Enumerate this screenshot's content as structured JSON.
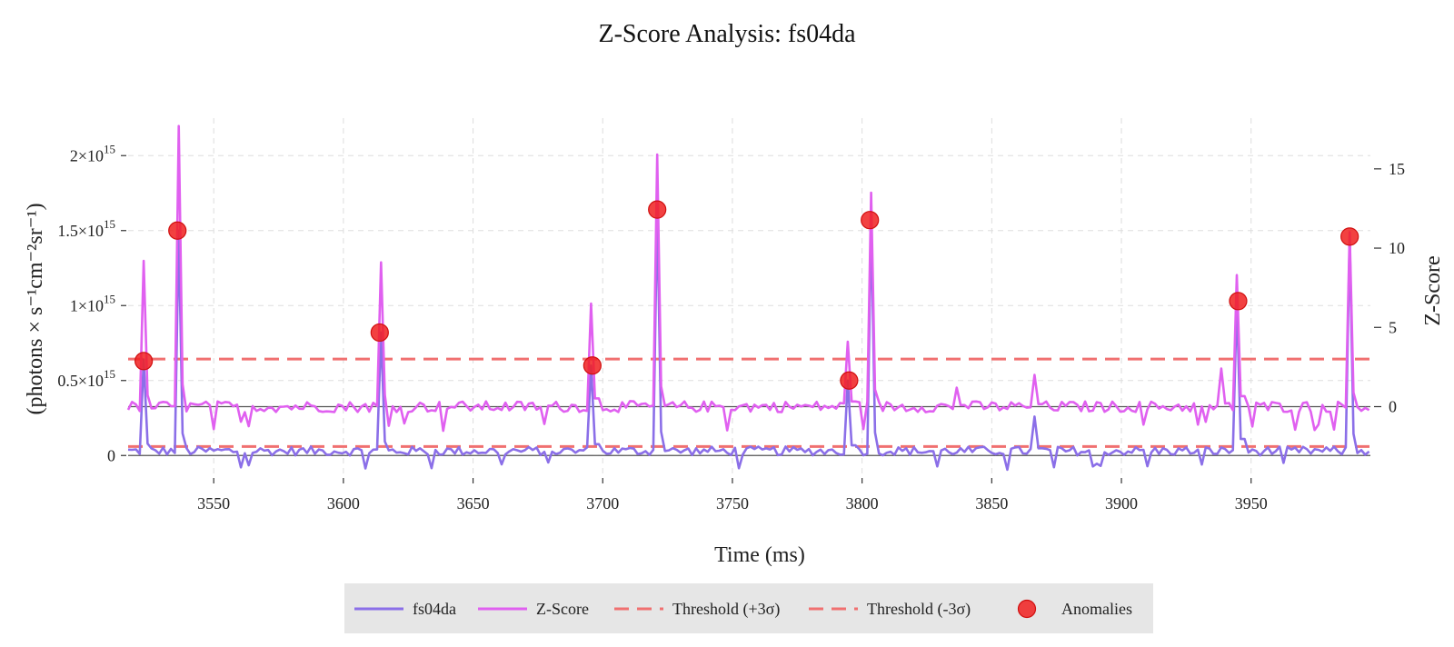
{
  "chart_data": {
    "type": "line",
    "title": "Z-Score Analysis: fs04da",
    "xlabel": "Time (ms)",
    "ylabel": "(photons × s⁻¹cm⁻²sr⁻¹)",
    "y2label": "Z-Score",
    "xlim": [
      3517,
      3996
    ],
    "ylim": [
      -150000000000000.0,
      2250000000000000.0
    ],
    "y2lim": [
      -4.5,
      18.2
    ],
    "x_ticks": [
      3550,
      3600,
      3650,
      3700,
      3750,
      3800,
      3850,
      3900,
      3950
    ],
    "x_tick_labels": [
      "3550",
      "3600",
      "3650",
      "3700",
      "3750",
      "3800",
      "3850",
      "3900",
      "3950"
    ],
    "y_ticks": [
      0,
      500000000000000.0,
      1000000000000000.0,
      1500000000000000.0,
      2000000000000000.0
    ],
    "y_tick_labels": [
      {
        "mant": "0",
        "exp": ""
      },
      {
        "mant": "0.5×10",
        "exp": "15"
      },
      {
        "mant": "1×10",
        "exp": "15"
      },
      {
        "mant": "1.5×10",
        "exp": "15"
      },
      {
        "mant": "2×10",
        "exp": "15"
      }
    ],
    "y2_ticks": [
      0,
      5,
      10,
      15
    ],
    "y2_tick_labels": [
      "0",
      "5",
      "10",
      "15"
    ],
    "grid": true,
    "legend_position": "bottom-center",
    "x_start": 3517,
    "x_step": 1.5,
    "series": [
      {
        "name": "fs04da",
        "color": "#8b6fe8",
        "axis": "left",
        "baseline": 30000000000000,
        "noise": 30000000000000,
        "peaks": [
          {
            "x": 3523,
            "y": 640000000000000
          },
          {
            "x": 3536,
            "y": 1500000000000000
          },
          {
            "x": 3614,
            "y": 820000000000000
          },
          {
            "x": 3696,
            "y": 600000000000000
          },
          {
            "x": 3721,
            "y": 1640000000000000
          },
          {
            "x": 3795,
            "y": 500000000000000
          },
          {
            "x": 3803,
            "y": 1570000000000000
          },
          {
            "x": 3867,
            "y": 260000000000000
          },
          {
            "x": 3945,
            "y": 1030000000000000
          },
          {
            "x": 3988,
            "y": 1460000000000000
          }
        ]
      },
      {
        "name": "Z-Score",
        "color": "#e060f0",
        "axis": "right",
        "baseline": 0,
        "noise": 0.35,
        "peaks": [
          {
            "x": 3523,
            "y": 9.2
          },
          {
            "x": 3536,
            "y": 17.7
          },
          {
            "x": 3614,
            "y": 9.1
          },
          {
            "x": 3696,
            "y": 6.5
          },
          {
            "x": 3721,
            "y": 15.9
          },
          {
            "x": 3795,
            "y": 4.1
          },
          {
            "x": 3803,
            "y": 13.5
          },
          {
            "x": 3837,
            "y": 1.2
          },
          {
            "x": 3867,
            "y": 2.0
          },
          {
            "x": 3938,
            "y": 2.4
          },
          {
            "x": 3945,
            "y": 8.3
          },
          {
            "x": 3988,
            "y": 11.0
          }
        ]
      }
    ],
    "thresholds": [
      {
        "name": "Threshold (+3σ)",
        "value": 3,
        "axis": "right",
        "color": "#f07070"
      },
      {
        "name": "Threshold (-3σ)",
        "value": 60000000000000,
        "axis": "left",
        "color": "#f07070"
      }
    ],
    "anomalies": {
      "name": "Anomalies",
      "color": "#f02020",
      "points": [
        {
          "x": 3523,
          "y": 630000000000000
        },
        {
          "x": 3536,
          "y": 1500000000000000
        },
        {
          "x": 3614,
          "y": 820000000000000
        },
        {
          "x": 3696,
          "y": 600000000000000
        },
        {
          "x": 3721,
          "y": 1640000000000000
        },
        {
          "x": 3795,
          "y": 500000000000000
        },
        {
          "x": 3803,
          "y": 1570000000000000
        },
        {
          "x": 3945,
          "y": 1030000000000000
        },
        {
          "x": 3988,
          "y": 1460000000000000
        }
      ]
    },
    "legend": [
      "fs04da",
      "Z-Score",
      "Threshold (+3σ)",
      "Threshold (-3σ)",
      "Anomalies"
    ]
  }
}
